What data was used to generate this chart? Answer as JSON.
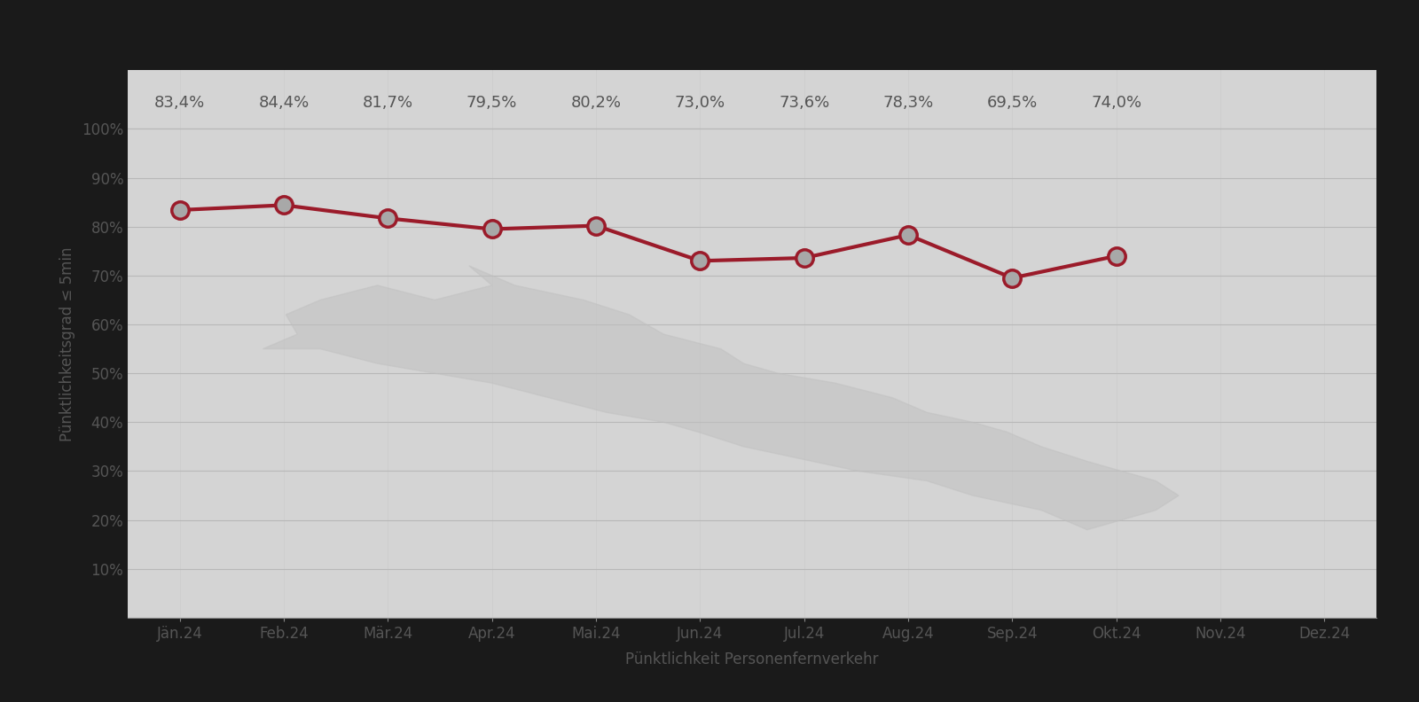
{
  "categories": [
    "Jän.24",
    "Feb.24",
    "Mär.24",
    "Apr.24",
    "Mai.24",
    "Jun.24",
    "Jul.24",
    "Aug.24",
    "Sep.24",
    "Okt.24",
    "Nov.24",
    "Dez.24"
  ],
  "values": [
    83.4,
    84.4,
    81.7,
    79.5,
    80.2,
    73.0,
    73.6,
    78.3,
    69.5,
    74.0,
    null,
    null
  ],
  "labels": [
    "83,4%",
    "84,4%",
    "81,7%",
    "79,5%",
    "80,2%",
    "73,0%",
    "73,6%",
    "78,3%",
    "69,5%",
    "74,0%",
    "",
    ""
  ],
  "line_color": "#9B1B2A",
  "marker_face_color": "#A8A8A8",
  "marker_edge_color": "#9B1B2A",
  "marker_size": 14,
  "line_width": 3.0,
  "bg_outer": "#1a1a1a",
  "bg_plot": "#d4d4d4",
  "bg_plot_lighter": "#e0e0e0",
  "grid_color": "#c0c0c0",
  "ylabel": "Pünktlichkeitsgrad ≤ 5min",
  "xlabel": "Pünktlichkeit Personenfernverkehr",
  "yticks": [
    10,
    20,
    30,
    40,
    50,
    60,
    70,
    80,
    90,
    100
  ],
  "ytick_labels": [
    "10%",
    "20%",
    "30%",
    "40%",
    "50%",
    "60%",
    "70%",
    "80%",
    "90%",
    "100%"
  ],
  "ylim": [
    0,
    110
  ],
  "label_color": "#555555",
  "label_fontsize": 13,
  "tick_fontsize": 12,
  "axis_label_fontsize": 12,
  "title_color": "#ffffff"
}
